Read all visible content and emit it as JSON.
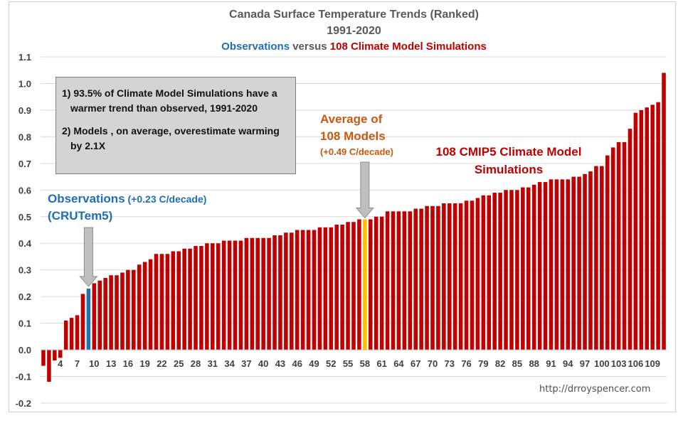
{
  "chart_data": {
    "type": "bar",
    "title": "Canada Surface Temperature Trends (Ranked)",
    "subtitle": "1991-2020",
    "subtitle2": {
      "part1": "Observations",
      "part2": " versus ",
      "part3": "108 Climate Model Simulations"
    },
    "ylim": [
      -0.2,
      1.1
    ],
    "yticks": [
      "1.1",
      "1.0",
      "0.9",
      "0.8",
      "0.7",
      "0.6",
      "0.5",
      "0.4",
      "0.3",
      "0.2",
      "0.1",
      "0.0",
      "-0.1",
      "-0.2"
    ],
    "xtick_labels": [
      "4",
      "7",
      "10",
      "13",
      "16",
      "19",
      "22",
      "25",
      "28",
      "31",
      "34",
      "37",
      "40",
      "43",
      "46",
      "49",
      "52",
      "55",
      "58",
      "61",
      "64",
      "67",
      "70",
      "73",
      "76",
      "79",
      "82",
      "85",
      "88",
      "91",
      "94",
      "97",
      "100",
      "103",
      "106",
      "109"
    ],
    "grid": true,
    "colors": {
      "models": "#c00000",
      "observations": "#1f6fb2",
      "average": "#ffc000"
    },
    "observation_index": 8,
    "average_index": 57,
    "values": [
      -0.06,
      -0.12,
      -0.04,
      -0.03,
      0.11,
      0.12,
      0.13,
      0.21,
      0.23,
      0.25,
      0.26,
      0.27,
      0.28,
      0.28,
      0.29,
      0.3,
      0.3,
      0.32,
      0.33,
      0.34,
      0.36,
      0.36,
      0.36,
      0.37,
      0.37,
      0.38,
      0.38,
      0.39,
      0.39,
      0.4,
      0.4,
      0.4,
      0.41,
      0.41,
      0.41,
      0.41,
      0.42,
      0.42,
      0.42,
      0.42,
      0.42,
      0.43,
      0.43,
      0.44,
      0.44,
      0.45,
      0.45,
      0.45,
      0.45,
      0.46,
      0.46,
      0.46,
      0.47,
      0.47,
      0.48,
      0.48,
      0.49,
      0.49,
      0.49,
      0.5,
      0.5,
      0.52,
      0.52,
      0.52,
      0.52,
      0.52,
      0.53,
      0.53,
      0.54,
      0.54,
      0.54,
      0.55,
      0.55,
      0.55,
      0.55,
      0.56,
      0.56,
      0.57,
      0.58,
      0.58,
      0.59,
      0.59,
      0.6,
      0.6,
      0.6,
      0.61,
      0.61,
      0.62,
      0.63,
      0.63,
      0.64,
      0.64,
      0.64,
      0.64,
      0.65,
      0.65,
      0.66,
      0.67,
      0.69,
      0.69,
      0.73,
      0.76,
      0.78,
      0.78,
      0.83,
      0.89,
      0.9,
      0.91,
      0.92,
      0.93,
      1.04
    ]
  },
  "annotations": {
    "box_line1": "1) 93.5% of Climate Model Simulations have a warmer trend than observed, 1991-2020",
    "box_line2": "2) Models , on average, overestimate warming by 2.1X",
    "obs_label": "Observations",
    "obs_value": " (+0.23 C/decade)",
    "obs_source": "(CRUTem5)",
    "avg_line1": "Average of",
    "avg_line2": "108 Models",
    "avg_line3": "(+0.49 C/decade)",
    "cmip_line1": "108 CMIP5 Climate Model",
    "cmip_line2": "Simulations",
    "url": "http://drroyspencer.com"
  }
}
